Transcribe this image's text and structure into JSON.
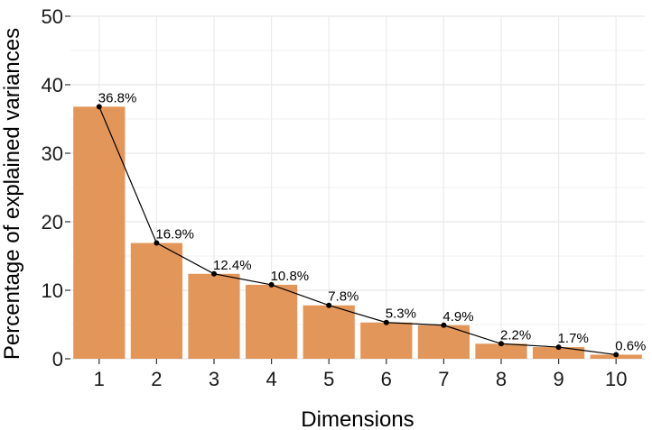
{
  "chart_data": {
    "type": "bar",
    "title": "",
    "xlabel": "Dimensions",
    "ylabel": "Percentage of explained variances",
    "categories": [
      "1",
      "2",
      "3",
      "4",
      "5",
      "6",
      "7",
      "8",
      "9",
      "10"
    ],
    "values": [
      36.8,
      16.9,
      12.4,
      10.8,
      7.8,
      5.3,
      4.9,
      2.2,
      1.7,
      0.6
    ],
    "data_labels": [
      "36.8%",
      "16.9%",
      "12.4%",
      "10.8%",
      "7.8%",
      "5.3%",
      "4.9%",
      "2.2%",
      "1.7%",
      "0.6%"
    ],
    "overlay_line": true,
    "ylim": [
      0,
      50
    ],
    "yticks": [
      "0",
      "10",
      "20",
      "30",
      "40",
      "50"
    ],
    "grid": true,
    "bar_color": "#e3965a",
    "line_color": "#000000",
    "grid_color": "#ebebeb"
  }
}
